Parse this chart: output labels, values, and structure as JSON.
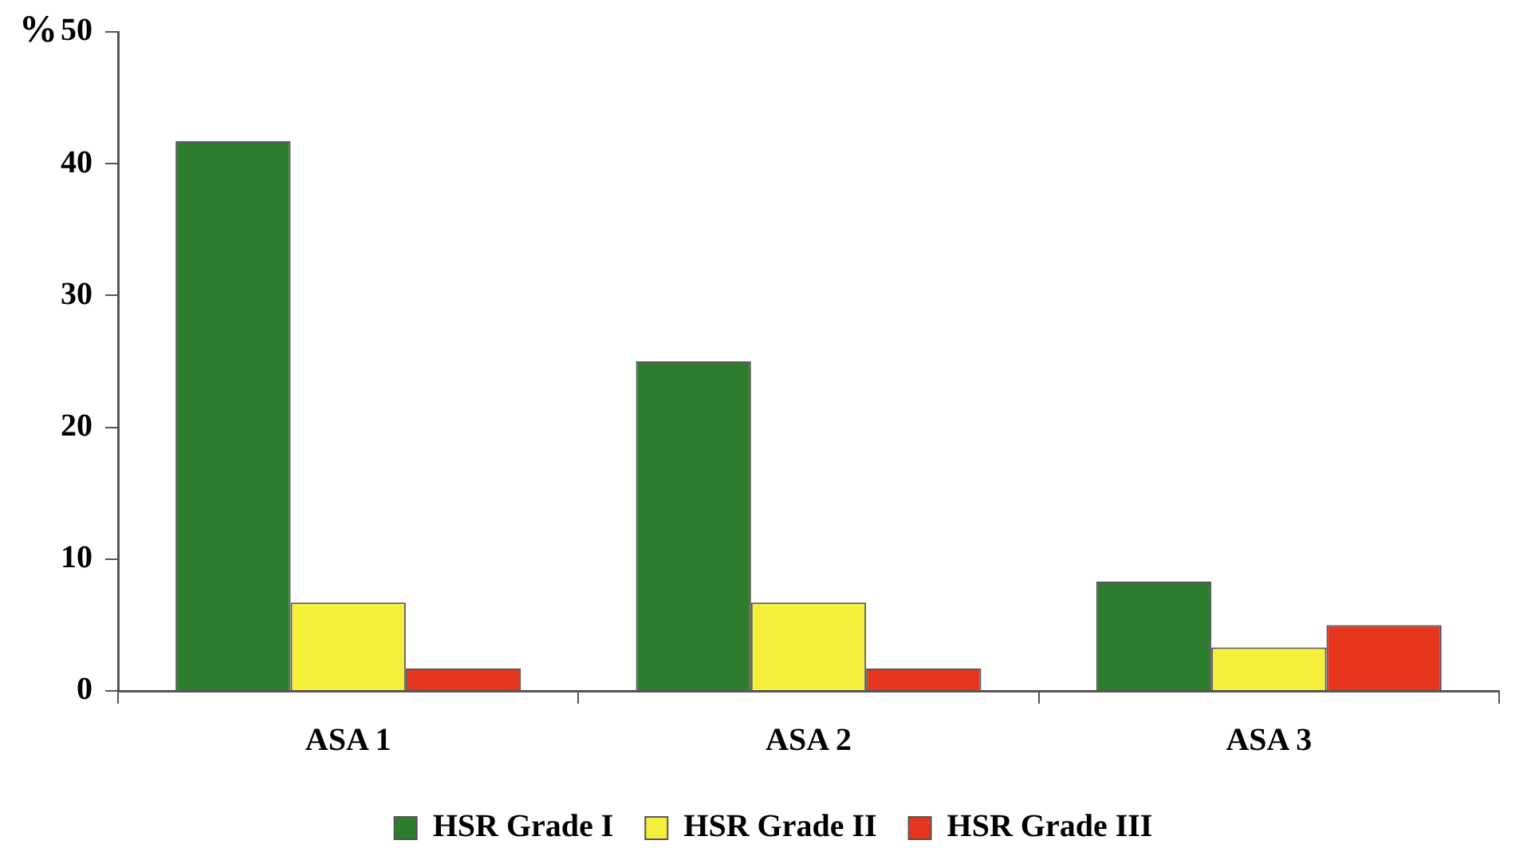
{
  "chart_data": {
    "type": "bar",
    "ylabel": "%",
    "categories": [
      "ASA 1",
      "ASA 2",
      "ASA 3"
    ],
    "series": [
      {
        "name": "HSR Grade I",
        "color": "#2e7d2e",
        "values": [
          41.7,
          25,
          8.3
        ]
      },
      {
        "name": "HSR Grade II",
        "color": "#f5ef3c",
        "values": [
          6.7,
          6.7,
          3.3
        ]
      },
      {
        "name": "HSR Grade III",
        "color": "#e8361e",
        "values": [
          1.7,
          1.7,
          5.0
        ]
      }
    ],
    "ylim": [
      0,
      50
    ],
    "yticks": [
      0,
      10,
      20,
      30,
      40,
      50
    ],
    "grid": false,
    "legend": "bottom"
  }
}
